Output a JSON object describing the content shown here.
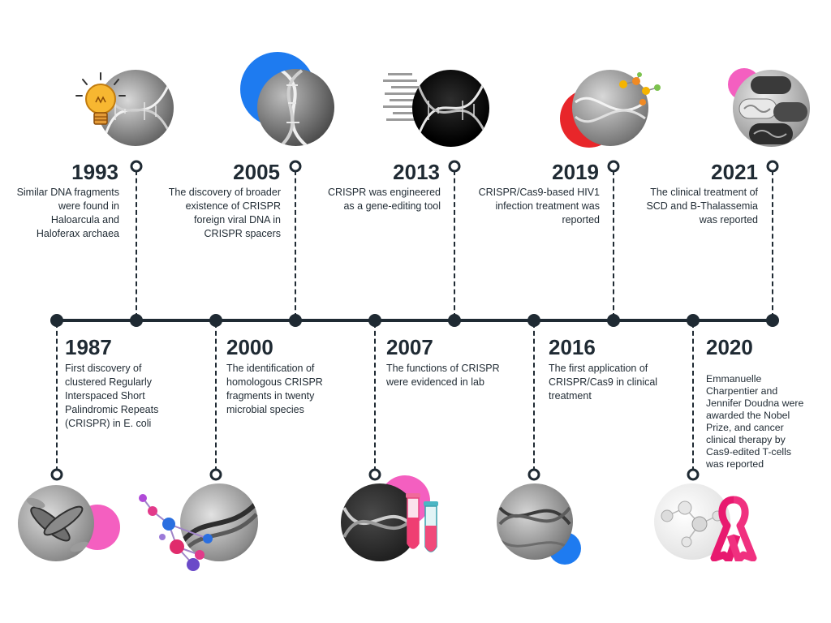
{
  "colors": {
    "line": "#1f2a33",
    "blue": "#1e7bf0",
    "pink": "#f45fc0",
    "red": "#e8262a"
  },
  "events_top": [
    {
      "year": "1993",
      "text": "Similar DNA fragments were found in Haloarcula and Haloferax archaea",
      "icon": "lightbulb-dna-icon"
    },
    {
      "year": "2005",
      "text": "The discovery of broader existence of CRISPR foreign viral DNA in CRISPR spacers",
      "icon": "dna-helix-icon"
    },
    {
      "year": "2013",
      "text": "CRISPR was engineered as a gene-editing tool",
      "icon": "dna-helix-icon"
    },
    {
      "year": "2019",
      "text": "CRISPR/Cas9-based HIV1 infection treatment was reported",
      "icon": "molecule-dna-icon"
    },
    {
      "year": "2021",
      "text": "The clinical treatment of SCD and B-Thalassemia was reported",
      "icon": "capsule-dna-icon"
    }
  ],
  "events_bottom": [
    {
      "year": "1987",
      "text": "First discovery of clustered Regularly Interspaced Short Palindromic Repeats (CRISPR) in E. coli",
      "icon": "bacteria-icon"
    },
    {
      "year": "2000",
      "text": "The identification of homologous CRISPR fragments in twenty microbial species",
      "icon": "molecule-icon"
    },
    {
      "year": "2007",
      "text": "The functions of CRISPR were evidenced in lab",
      "icon": "test-tube-icon"
    },
    {
      "year": "2016",
      "text": "The first application of CRISPR/Cas9 in clinical treatment",
      "icon": "dna-helix-icon"
    },
    {
      "year": "2020",
      "text": "Emmanuelle Charpentier and Jennifer Doudna were awarded the Nobel Prize, and cancer clinical therapy by Cas9-edited T-cells was reported",
      "icon": "awareness-ribbon-icon"
    }
  ]
}
